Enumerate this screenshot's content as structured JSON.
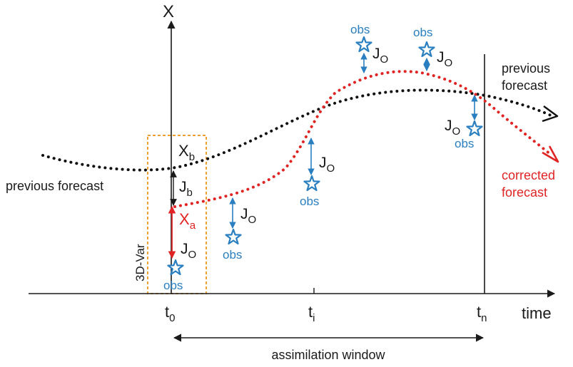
{
  "axes": {
    "y_label": "X",
    "x_label": "time",
    "ticks": [
      {
        "main": "t",
        "sub": "0"
      },
      {
        "main": "t",
        "sub": "i"
      },
      {
        "main": "t",
        "sub": "n"
      }
    ]
  },
  "window_label": "assimilation window",
  "box_label": "3D-Var",
  "background": {
    "main": "X",
    "sub": "b"
  },
  "analysis": {
    "main": "X",
    "sub": "a"
  },
  "background_cost": {
    "main": "J",
    "sub": "b"
  },
  "obs_cost": {
    "main": "J",
    "sub": "O"
  },
  "obs_label": "obs",
  "previous_forecast_left": "previous forecast",
  "previous_forecast_right": [
    "previous",
    "forecast"
  ],
  "corrected_forecast": [
    "corrected",
    "forecast"
  ],
  "colors": {
    "axis": "#1a1a1a",
    "previous_forecast": "#111111",
    "corrected_forecast": "#e02424",
    "observation": "#2a7fc0",
    "box": "#f0a030"
  }
}
